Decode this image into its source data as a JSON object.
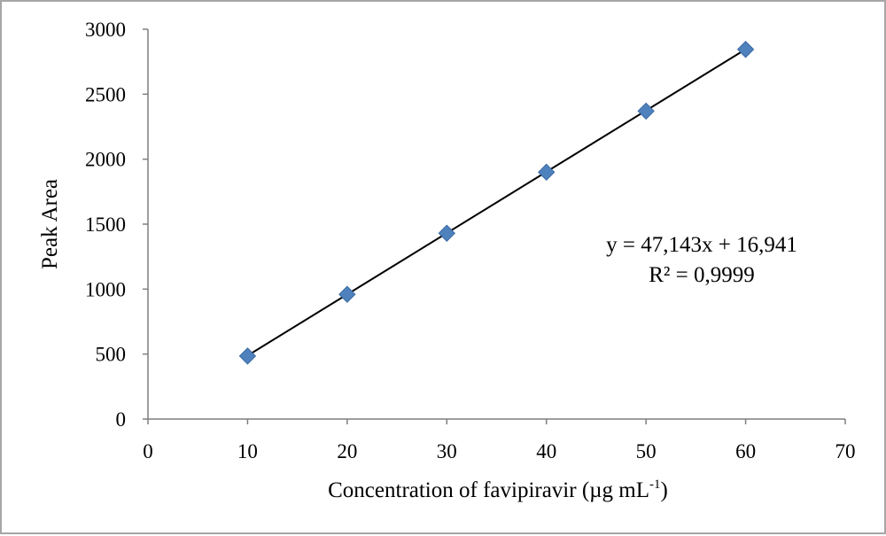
{
  "chart_data": {
    "type": "scatter",
    "title": "",
    "xlabel": "Concentration of favipiravir (µg mL",
    "xlabel_sup": "-1",
    "xlabel_close": ")",
    "ylabel": "Peak Area",
    "xlim": [
      0,
      70
    ],
    "ylim": [
      0,
      3000
    ],
    "xticks": [
      0,
      10,
      20,
      30,
      40,
      50,
      60,
      70
    ],
    "yticks": [
      0,
      500,
      1000,
      1500,
      2000,
      2500,
      3000
    ],
    "grid": false,
    "legend": "none",
    "series": [
      {
        "marker": "diamond",
        "color": "#4f81bd",
        "x": [
          10,
          20,
          30,
          40,
          50,
          60
        ],
        "y": [
          485,
          960,
          1430,
          1900,
          2370,
          2845
        ]
      }
    ],
    "trendline": {
      "type": "linear",
      "slope": 47.143,
      "intercept": 16.941,
      "color": "#000000",
      "equation": "y = 47,143x + 16,941",
      "r2_text": "R² = 0,9999"
    }
  }
}
